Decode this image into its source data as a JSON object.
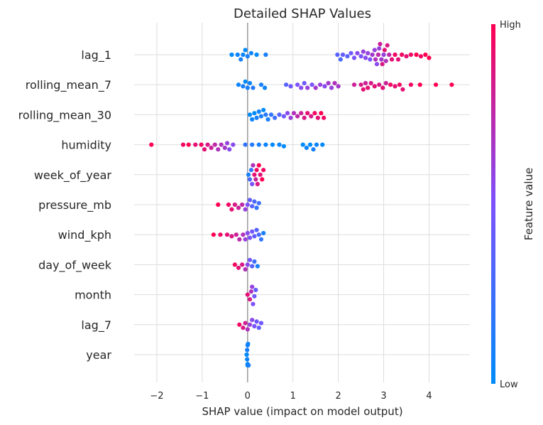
{
  "chart_data": {
    "type": "scatter",
    "subtype": "shap-beeswarm",
    "title": "Detailed SHAP Values",
    "xlabel": "SHAP value (impact on model output)",
    "xlim": [
      -2.5,
      4.9
    ],
    "xticks": [
      -2,
      -1,
      0,
      1,
      2,
      3,
      4
    ],
    "xtick_labels": [
      "−2",
      "−1",
      "0",
      "1",
      "2",
      "3",
      "4"
    ],
    "grid": true,
    "colorbar": {
      "label": "Feature value",
      "high_label": "High",
      "low_label": "Low",
      "low_color": "#008bfb",
      "mid_color": "#7c52ff",
      "high_color": "#ff0052"
    },
    "features": [
      {
        "name": "lag_1",
        "points": [
          {
            "x": -0.35,
            "v": 0.0
          },
          {
            "x": -0.22,
            "v": 0.05
          },
          {
            "x": -0.15,
            "v": 0.1
          },
          {
            "x": -0.1,
            "v": 0.05
          },
          {
            "x": -0.05,
            "v": 0.0
          },
          {
            "x": 0.0,
            "v": 0.1
          },
          {
            "x": 0.08,
            "v": 0.05
          },
          {
            "x": 0.2,
            "v": 0.0
          },
          {
            "x": 0.4,
            "v": 0.1
          },
          {
            "x": 1.98,
            "v": 0.35
          },
          {
            "x": 2.05,
            "v": 0.3
          },
          {
            "x": 2.1,
            "v": 0.4
          },
          {
            "x": 2.2,
            "v": 0.35
          },
          {
            "x": 2.28,
            "v": 0.45
          },
          {
            "x": 2.35,
            "v": 0.5
          },
          {
            "x": 2.42,
            "v": 0.55
          },
          {
            "x": 2.5,
            "v": 0.5
          },
          {
            "x": 2.55,
            "v": 0.6
          },
          {
            "x": 2.6,
            "v": 0.55
          },
          {
            "x": 2.65,
            "v": 0.6
          },
          {
            "x": 2.7,
            "v": 0.5
          },
          {
            "x": 2.75,
            "v": 0.65
          },
          {
            "x": 2.8,
            "v": 0.6
          },
          {
            "x": 2.82,
            "v": 0.7
          },
          {
            "x": 2.85,
            "v": 0.55
          },
          {
            "x": 2.88,
            "v": 0.75
          },
          {
            "x": 2.9,
            "v": 0.6
          },
          {
            "x": 2.92,
            "v": 0.8
          },
          {
            "x": 2.95,
            "v": 0.65
          },
          {
            "x": 2.97,
            "v": 0.85
          },
          {
            "x": 3.0,
            "v": 0.6
          },
          {
            "x": 3.02,
            "v": 0.9
          },
          {
            "x": 3.05,
            "v": 0.7
          },
          {
            "x": 3.08,
            "v": 0.85
          },
          {
            "x": 3.12,
            "v": 0.75
          },
          {
            "x": 3.18,
            "v": 0.9
          },
          {
            "x": 3.25,
            "v": 0.95
          },
          {
            "x": 3.32,
            "v": 0.9
          },
          {
            "x": 3.4,
            "v": 0.95
          },
          {
            "x": 3.5,
            "v": 0.9
          },
          {
            "x": 3.6,
            "v": 0.95
          },
          {
            "x": 3.72,
            "v": 1.0
          },
          {
            "x": 3.82,
            "v": 0.95
          },
          {
            "x": 3.92,
            "v": 1.0
          },
          {
            "x": 4.0,
            "v": 1.0
          }
        ]
      },
      {
        "name": "rolling_mean_7",
        "points": [
          {
            "x": -0.2,
            "v": 0.05
          },
          {
            "x": -0.1,
            "v": 0.1
          },
          {
            "x": -0.05,
            "v": 0.0
          },
          {
            "x": 0.0,
            "v": 0.1
          },
          {
            "x": 0.05,
            "v": 0.05
          },
          {
            "x": 0.12,
            "v": 0.15
          },
          {
            "x": 0.3,
            "v": 0.1
          },
          {
            "x": 0.38,
            "v": 0.05
          },
          {
            "x": 0.85,
            "v": 0.35
          },
          {
            "x": 0.95,
            "v": 0.45
          },
          {
            "x": 1.1,
            "v": 0.5
          },
          {
            "x": 1.18,
            "v": 0.55
          },
          {
            "x": 1.25,
            "v": 0.45
          },
          {
            "x": 1.32,
            "v": 0.6
          },
          {
            "x": 1.42,
            "v": 0.5
          },
          {
            "x": 1.5,
            "v": 0.65
          },
          {
            "x": 1.6,
            "v": 0.6
          },
          {
            "x": 1.7,
            "v": 0.55
          },
          {
            "x": 1.78,
            "v": 0.65
          },
          {
            "x": 1.85,
            "v": 0.6
          },
          {
            "x": 1.92,
            "v": 0.7
          },
          {
            "x": 2.0,
            "v": 0.65
          },
          {
            "x": 2.35,
            "v": 0.8
          },
          {
            "x": 2.5,
            "v": 0.85
          },
          {
            "x": 2.55,
            "v": 0.9
          },
          {
            "x": 2.6,
            "v": 0.8
          },
          {
            "x": 2.65,
            "v": 0.9
          },
          {
            "x": 2.72,
            "v": 0.85
          },
          {
            "x": 2.8,
            "v": 0.9
          },
          {
            "x": 2.9,
            "v": 0.85
          },
          {
            "x": 2.98,
            "v": 0.9
          },
          {
            "x": 3.05,
            "v": 0.8
          },
          {
            "x": 3.15,
            "v": 0.95
          },
          {
            "x": 3.25,
            "v": 0.9
          },
          {
            "x": 3.35,
            "v": 0.95
          },
          {
            "x": 3.42,
            "v": 0.9
          },
          {
            "x": 3.6,
            "v": 0.95
          },
          {
            "x": 3.8,
            "v": 1.0
          },
          {
            "x": 4.15,
            "v": 1.0
          },
          {
            "x": 4.5,
            "v": 1.0
          }
        ]
      },
      {
        "name": "rolling_mean_30",
        "points": [
          {
            "x": 0.05,
            "v": 0.0
          },
          {
            "x": 0.1,
            "v": 0.05
          },
          {
            "x": 0.15,
            "v": 0.0
          },
          {
            "x": 0.2,
            "v": 0.1
          },
          {
            "x": 0.25,
            "v": 0.05
          },
          {
            "x": 0.3,
            "v": 0.1
          },
          {
            "x": 0.35,
            "v": 0.0
          },
          {
            "x": 0.4,
            "v": 0.15
          },
          {
            "x": 0.45,
            "v": 0.1
          },
          {
            "x": 0.52,
            "v": 0.2
          },
          {
            "x": 0.6,
            "v": 0.25
          },
          {
            "x": 0.7,
            "v": 0.35
          },
          {
            "x": 0.8,
            "v": 0.45
          },
          {
            "x": 0.88,
            "v": 0.55
          },
          {
            "x": 0.95,
            "v": 0.6
          },
          {
            "x": 1.02,
            "v": 0.7
          },
          {
            "x": 1.1,
            "v": 0.75
          },
          {
            "x": 1.18,
            "v": 0.8
          },
          {
            "x": 1.25,
            "v": 0.85
          },
          {
            "x": 1.32,
            "v": 0.9
          },
          {
            "x": 1.4,
            "v": 0.85
          },
          {
            "x": 1.48,
            "v": 0.95
          },
          {
            "x": 1.55,
            "v": 0.9
          },
          {
            "x": 1.62,
            "v": 1.0
          },
          {
            "x": 1.68,
            "v": 0.95
          }
        ]
      },
      {
        "name": "humidity",
        "points": [
          {
            "x": -2.12,
            "v": 1.0
          },
          {
            "x": -1.42,
            "v": 0.95
          },
          {
            "x": -1.3,
            "v": 1.0
          },
          {
            "x": -1.15,
            "v": 0.9
          },
          {
            "x": -1.02,
            "v": 0.95
          },
          {
            "x": -0.95,
            "v": 0.9
          },
          {
            "x": -0.88,
            "v": 0.85
          },
          {
            "x": -0.8,
            "v": 0.8
          },
          {
            "x": -0.72,
            "v": 0.75
          },
          {
            "x": -0.65,
            "v": 0.7
          },
          {
            "x": -0.58,
            "v": 0.7
          },
          {
            "x": -0.5,
            "v": 0.65
          },
          {
            "x": -0.45,
            "v": 0.6
          },
          {
            "x": -0.4,
            "v": 0.55
          },
          {
            "x": -0.32,
            "v": 0.55
          },
          {
            "x": -0.05,
            "v": 0.2
          },
          {
            "x": 0.1,
            "v": 0.15
          },
          {
            "x": 0.25,
            "v": 0.1
          },
          {
            "x": 0.4,
            "v": 0.05
          },
          {
            "x": 0.55,
            "v": 0.0
          },
          {
            "x": 0.7,
            "v": 0.05
          },
          {
            "x": 0.8,
            "v": 0.0
          },
          {
            "x": 1.22,
            "v": 0.0
          },
          {
            "x": 1.3,
            "v": 0.05
          },
          {
            "x": 1.38,
            "v": 0.0
          },
          {
            "x": 1.45,
            "v": 0.1
          },
          {
            "x": 1.52,
            "v": 0.05
          },
          {
            "x": 1.65,
            "v": 0.0
          }
        ]
      },
      {
        "name": "week_of_year",
        "points": [
          {
            "x": 0.02,
            "v": 0.1
          },
          {
            "x": 0.05,
            "v": 0.3
          },
          {
            "x": 0.08,
            "v": 0.2
          },
          {
            "x": 0.1,
            "v": 0.5
          },
          {
            "x": 0.12,
            "v": 0.7
          },
          {
            "x": 0.15,
            "v": 0.9
          },
          {
            "x": 0.18,
            "v": 0.8
          },
          {
            "x": 0.2,
            "v": 0.95
          },
          {
            "x": 0.22,
            "v": 0.85
          },
          {
            "x": 0.25,
            "v": 1.0
          },
          {
            "x": 0.28,
            "v": 0.9
          },
          {
            "x": 0.32,
            "v": 1.0
          },
          {
            "x": 0.35,
            "v": 0.95
          }
        ]
      },
      {
        "name": "pressure_mb",
        "points": [
          {
            "x": -0.65,
            "v": 1.0
          },
          {
            "x": -0.42,
            "v": 0.95
          },
          {
            "x": -0.35,
            "v": 0.9
          },
          {
            "x": -0.28,
            "v": 0.85
          },
          {
            "x": -0.2,
            "v": 0.8
          },
          {
            "x": -0.12,
            "v": 0.75
          },
          {
            "x": -0.05,
            "v": 0.6
          },
          {
            "x": 0.0,
            "v": 0.5
          },
          {
            "x": 0.05,
            "v": 0.4
          },
          {
            "x": 0.1,
            "v": 0.35
          },
          {
            "x": 0.15,
            "v": 0.3
          },
          {
            "x": 0.2,
            "v": 0.2
          },
          {
            "x": 0.25,
            "v": 0.25
          }
        ]
      },
      {
        "name": "wind_kph",
        "points": [
          {
            "x": -0.75,
            "v": 1.0
          },
          {
            "x": -0.6,
            "v": 0.95
          },
          {
            "x": -0.45,
            "v": 0.9
          },
          {
            "x": -0.35,
            "v": 0.85
          },
          {
            "x": -0.25,
            "v": 0.8
          },
          {
            "x": -0.18,
            "v": 0.75
          },
          {
            "x": -0.1,
            "v": 0.7
          },
          {
            "x": -0.05,
            "v": 0.6
          },
          {
            "x": 0.0,
            "v": 0.55
          },
          {
            "x": 0.05,
            "v": 0.5
          },
          {
            "x": 0.1,
            "v": 0.45
          },
          {
            "x": 0.15,
            "v": 0.4
          },
          {
            "x": 0.2,
            "v": 0.35
          },
          {
            "x": 0.25,
            "v": 0.3
          },
          {
            "x": 0.3,
            "v": 0.2
          },
          {
            "x": 0.35,
            "v": 0.1
          }
        ]
      },
      {
        "name": "day_of_week",
        "points": [
          {
            "x": -0.28,
            "v": 0.95
          },
          {
            "x": -0.2,
            "v": 0.9
          },
          {
            "x": -0.12,
            "v": 0.85
          },
          {
            "x": -0.05,
            "v": 0.7
          },
          {
            "x": 0.0,
            "v": 0.55
          },
          {
            "x": 0.05,
            "v": 0.45
          },
          {
            "x": 0.1,
            "v": 0.35
          },
          {
            "x": 0.15,
            "v": 0.25
          },
          {
            "x": 0.22,
            "v": 0.1
          }
        ]
      },
      {
        "name": "month",
        "points": [
          {
            "x": 0.0,
            "v": 0.9
          },
          {
            "x": 0.05,
            "v": 0.85
          },
          {
            "x": 0.08,
            "v": 0.7
          },
          {
            "x": 0.1,
            "v": 0.6
          },
          {
            "x": 0.12,
            "v": 0.5
          },
          {
            "x": 0.15,
            "v": 0.45
          },
          {
            "x": 0.18,
            "v": 0.4
          }
        ]
      },
      {
        "name": "lag_7",
        "points": [
          {
            "x": -0.18,
            "v": 0.95
          },
          {
            "x": -0.1,
            "v": 0.85
          },
          {
            "x": -0.05,
            "v": 0.8
          },
          {
            "x": 0.0,
            "v": 0.7
          },
          {
            "x": 0.05,
            "v": 0.6
          },
          {
            "x": 0.1,
            "v": 0.55
          },
          {
            "x": 0.15,
            "v": 0.5
          },
          {
            "x": 0.2,
            "v": 0.45
          },
          {
            "x": 0.25,
            "v": 0.4
          },
          {
            "x": 0.3,
            "v": 0.45
          }
        ]
      },
      {
        "name": "year",
        "points": [
          {
            "x": -0.02,
            "v": 0.0
          },
          {
            "x": -0.01,
            "v": 0.05
          },
          {
            "x": 0.0,
            "v": 0.0
          },
          {
            "x": 0.01,
            "v": 0.05
          },
          {
            "x": 0.02,
            "v": 0.0
          },
          {
            "x": 0.0,
            "v": 0.1
          },
          {
            "x": 0.01,
            "v": 0.0
          },
          {
            "x": -0.01,
            "v": 0.1
          },
          {
            "x": 0.0,
            "v": 0.05
          },
          {
            "x": 0.02,
            "v": 0.1
          }
        ]
      }
    ]
  }
}
